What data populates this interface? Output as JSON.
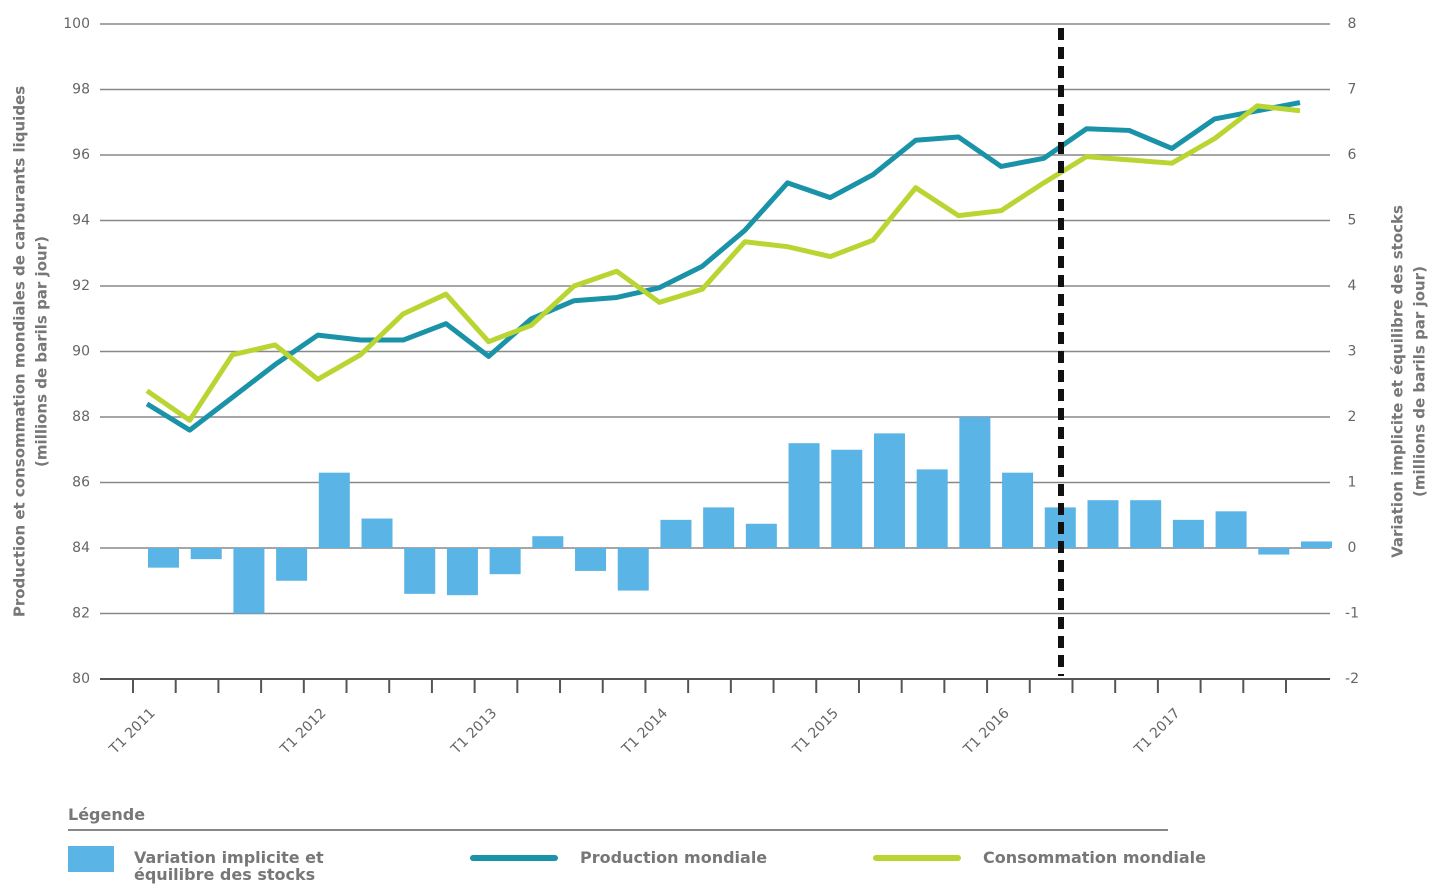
{
  "chart_data": {
    "type": "combo",
    "ylabel": [
      "Production et consommation mondiales de carburants liquides",
      "(millions de barils par jour)"
    ],
    "y2label": [
      "Variation implicite et équilibre des stocks",
      "(millions de barils par jour)"
    ],
    "legend_title": "Légende",
    "categories": [
      "T1 2011",
      null,
      null,
      null,
      "T1 2012",
      null,
      null,
      null,
      "T1 2013",
      null,
      null,
      null,
      "T1 2014",
      null,
      null,
      null,
      "T1 2015",
      null,
      null,
      null,
      "T1 2016",
      null,
      null,
      null,
      "T1 2017",
      null,
      null,
      null
    ],
    "ylim": [
      80,
      100
    ],
    "yticks": [
      80,
      82,
      84,
      86,
      88,
      90,
      92,
      94,
      96,
      98,
      100
    ],
    "y2lim": [
      -2,
      8
    ],
    "y2ticks": [
      -2,
      -1,
      0,
      1,
      2,
      3,
      4,
      5,
      6,
      7,
      8
    ],
    "grid": true,
    "series": [
      {
        "name": "Variation implicite et équilibre des stocks",
        "type": "bar",
        "axis": "y2",
        "color": "#5ab4e5",
        "values": [
          -0.3,
          -0.17,
          -1.0,
          -0.5,
          1.15,
          0.45,
          -0.7,
          -0.72,
          -0.4,
          0.18,
          -0.35,
          -0.65,
          0.43,
          0.62,
          0.37,
          1.6,
          1.5,
          1.75,
          1.2,
          2.0,
          1.15,
          0.62,
          0.73,
          0.73,
          0.43,
          0.56,
          -0.1,
          0.1
        ]
      },
      {
        "name": "Production mondiale",
        "type": "line",
        "color": "#1a93a8",
        "values": [
          88.4,
          87.6,
          88.6,
          89.6,
          90.5,
          90.35,
          90.35,
          90.85,
          89.85,
          91.0,
          91.55,
          91.65,
          91.95,
          92.6,
          93.7,
          95.15,
          94.7,
          95.4,
          96.45,
          96.55,
          95.65,
          95.9,
          96.8,
          96.75,
          96.2,
          97.1,
          97.35,
          97.6
        ]
      },
      {
        "name": "Consommation mondiale",
        "type": "line",
        "color": "#b9d532",
        "values": [
          88.8,
          87.9,
          89.9,
          90.2,
          89.15,
          89.9,
          91.15,
          91.75,
          90.3,
          90.8,
          92.0,
          92.45,
          91.5,
          91.9,
          93.35,
          93.2,
          92.9,
          93.4,
          95.0,
          94.15,
          94.3,
          95.15,
          95.95,
          95.85,
          95.75,
          96.5,
          97.5,
          97.35
        ]
      }
    ]
  }
}
